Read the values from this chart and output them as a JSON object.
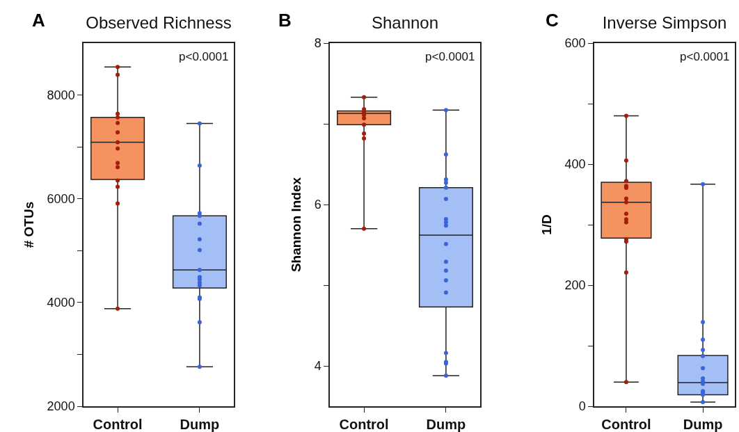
{
  "chart_data": [
    {
      "type": "box",
      "title": "Observed Richness",
      "ylabel": "# OTUs",
      "annotations": [
        "A",
        "p<0.0001"
      ],
      "categories": [
        "Control",
        "Dump"
      ],
      "colors": [
        "#f4935f",
        "#a4bff5"
      ],
      "marker": "circle",
      "ylim": [
        2000,
        9000
      ],
      "yticks": [
        2000,
        {
          "value": 3000,
          "label": null
        },
        4000,
        {
          "value": 5000,
          "label": null
        },
        6000,
        {
          "value": 7000,
          "label": null
        },
        8000
      ],
      "boxes": [
        {
          "low": 3880,
          "q1": 6370,
          "median": 7090,
          "q3": 7570,
          "high": 8540
        },
        {
          "low": 2760,
          "q1": 4280,
          "median": 4630,
          "q3": 5670,
          "high": 7450
        }
      ],
      "series": [
        {
          "type": "scatter",
          "color": "#a51d0b",
          "x": [
            "Control",
            "Control",
            "Control",
            "Control",
            "Control",
            "Control",
            "Control",
            "Control",
            "Control",
            "Control",
            "Control",
            "Control",
            "Control",
            "Control",
            "Control"
          ],
          "values": [
            8540,
            8390,
            7640,
            7570,
            null,
            7460,
            7280,
            7090,
            6970,
            6690,
            6610,
            6350,
            6230,
            5910,
            3880
          ]
        },
        {
          "type": "scatter",
          "color": "#3b64d6",
          "x": [
            "Dump",
            "Dump",
            "Dump",
            "Dump",
            "Dump",
            "Dump",
            "Dump",
            "Dump",
            "Dump",
            "Dump",
            "Dump",
            "Dump",
            "Dump",
            "Dump",
            "Dump",
            "Dump",
            "Dump"
          ],
          "values": [
            7450,
            6640,
            5720,
            5670,
            5520,
            5220,
            5010,
            null,
            4630,
            4490,
            4440,
            4380,
            4330,
            4100,
            4070,
            3620,
            2760
          ]
        }
      ]
    },
    {
      "type": "box",
      "title": "Shannon",
      "ylabel": "Shannon Index",
      "annotations": [
        "B",
        "p<0.0001"
      ],
      "categories": [
        "Control",
        "Dump"
      ],
      "colors": [
        "#f4935f",
        "#a4bff5"
      ],
      "marker": "circle",
      "ylim": [
        3.5,
        8
      ],
      "yticks": [
        4,
        {
          "value": 5,
          "label": null
        },
        6,
        {
          "value": 7,
          "label": null
        },
        8
      ],
      "boxes": [
        {
          "low": 5.7,
          "q1": 6.99,
          "median": 7.13,
          "q3": 7.16,
          "high": 7.33
        },
        {
          "low": 3.88,
          "q1": 4.73,
          "median": 5.62,
          "q3": 6.21,
          "high": 7.17
        }
      ],
      "series": [
        {
          "type": "scatter",
          "color": "#a51d0b",
          "x": [
            "Control",
            "Control",
            "Control",
            "Control",
            "Control",
            "Control",
            "Control",
            "Control",
            "Control",
            "Control"
          ],
          "values": [
            7.33,
            null,
            7.18,
            7.14,
            7.11,
            7.07,
            6.99,
            6.88,
            6.82,
            5.7
          ]
        },
        {
          "type": "scatter",
          "color": "#3b64d6",
          "x": [
            "Dump",
            "Dump",
            "Dump",
            "Dump",
            "Dump",
            "Dump",
            "Dump",
            "Dump",
            "Dump",
            "Dump",
            "Dump",
            "Dump",
            "Dump",
            "Dump",
            "Dump",
            "Dump",
            "Dump",
            "Dump"
          ],
          "values": [
            7.17,
            6.62,
            6.31,
            6.27,
            6.21,
            6.07,
            5.82,
            5.78,
            5.74,
            5.51,
            5.29,
            5.18,
            5.06,
            4.91,
            4.16,
            4.05,
            4.03,
            3.88
          ]
        }
      ]
    },
    {
      "type": "box",
      "title": "Inverse Simpson",
      "ylabel": "1/D",
      "annotations": [
        "C",
        "p<0.0001"
      ],
      "categories": [
        "Control",
        "Dump"
      ],
      "colors": [
        "#f4935f",
        "#a4bff5"
      ],
      "marker": "circle",
      "ylim": [
        0,
        600
      ],
      "yticks": [
        0,
        {
          "value": 100,
          "label": null
        },
        200,
        {
          "value": 300,
          "label": null
        },
        400,
        {
          "value": 500,
          "label": null
        },
        600
      ],
      "boxes": [
        {
          "low": 40,
          "q1": 278,
          "median": 337,
          "q3": 370,
          "high": 480
        },
        {
          "low": 7,
          "q1": 19,
          "median": 39,
          "q3": 84,
          "high": 367
        }
      ],
      "series": [
        {
          "type": "scatter",
          "color": "#a51d0b",
          "x": [
            "Control",
            "Control",
            "Control",
            "Control",
            "Control",
            "Control",
            "Control",
            "Control",
            "Control",
            "Control",
            "Control",
            "Control",
            "Control",
            "Control"
          ],
          "values": [
            480,
            406,
            372,
            364,
            361,
            343,
            337,
            318,
            309,
            304,
            276,
            272,
            221,
            40
          ]
        },
        {
          "type": "scatter",
          "color": "#3b64d6",
          "x": [
            "Dump",
            "Dump",
            "Dump",
            "Dump",
            "Dump",
            "Dump",
            "Dump",
            "Dump",
            "Dump",
            "Dump",
            "Dump",
            "Dump",
            "Dump"
          ],
          "values": [
            367,
            139,
            110,
            93,
            83,
            63,
            46,
            41,
            37,
            25,
            22,
            19,
            7
          ]
        }
      ]
    }
  ]
}
